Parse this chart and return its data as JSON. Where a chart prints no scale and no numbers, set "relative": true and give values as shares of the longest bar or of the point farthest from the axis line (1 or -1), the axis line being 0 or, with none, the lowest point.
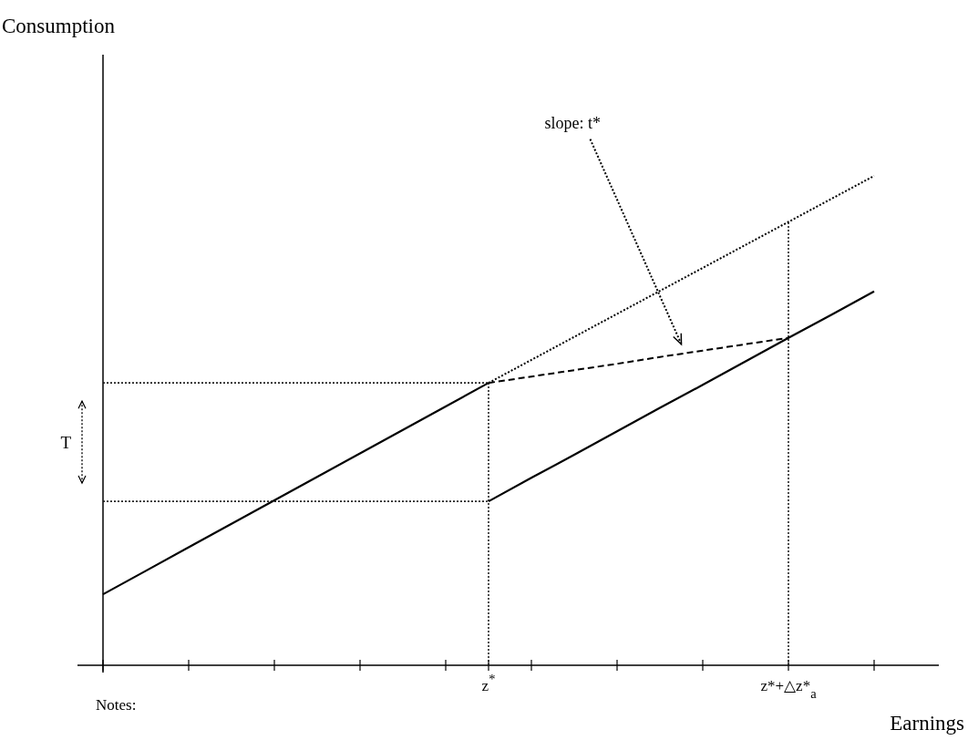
{
  "chart_data": {
    "type": "line",
    "relative": true,
    "xlabel": "Earnings",
    "categories": [
      null,
      null,
      null,
      null,
      null,
      null,
      null,
      null,
      null,
      "z$^{*}$",
      null,
      null,
      null,
      null,
      null,
      null,
      "z*+△z*$_{a}$",
      null,
      null,
      null
    ],
    "series": [
      {
        "color": "#000000",
        "line_style": "solid",
        "values": [
          0.145,
          0.193,
          0.241,
          0.289,
          0.337,
          0.385,
          0.433,
          0.481,
          0.529,
          0.577,
          null,
          null,
          null,
          null,
          null,
          null,
          null,
          null,
          null,
          null
        ]
      },
      {
        "color": "#000000",
        "line_style": "dotted",
        "values": [
          null,
          null,
          null,
          null,
          null,
          null,
          null,
          null,
          null,
          0.577,
          0.624,
          0.671,
          0.718,
          0.765,
          0.812,
          0.859,
          0.906,
          0.953,
          1,
          null
        ]
      },
      {
        "color": "#000000",
        "line_style": "solid",
        "values": [
          null,
          null,
          null,
          null,
          null,
          null,
          null,
          null,
          null,
          0.335,
          0.383,
          0.43,
          0.478,
          0.526,
          0.573,
          0.621,
          0.669,
          0.716,
          0.764,
          null
        ]
      },
      {
        "color": "#000000",
        "line_style": "dashed",
        "values": [
          null,
          null,
          null,
          null,
          null,
          null,
          null,
          null,
          null,
          0.577,
          0.59,
          0.603,
          0.616,
          0.63,
          0.643,
          0.656,
          0.669,
          null,
          null,
          null
        ]
      }
    ],
    "ref_lines": [
      {
        "axis": "y",
        "value": 0.577,
        "line_style": "dotted",
        "color": "#222222"
      },
      {
        "axis": "y",
        "value": 0.335,
        "line_style": "dotted",
        "color": "#222222"
      },
      {
        "axis": "x",
        "value": "z$^{*}$",
        "line_style": "dotted",
        "color": "#222222"
      },
      {
        "axis": "x",
        "value": "z*+△z*$_{a}$",
        "line_style": "dotted",
        "color": "#222222"
      }
    ],
    "annotations": [
      "slope: t*",
      "T",
      "Notes:",
      "Consumption"
    ]
  }
}
